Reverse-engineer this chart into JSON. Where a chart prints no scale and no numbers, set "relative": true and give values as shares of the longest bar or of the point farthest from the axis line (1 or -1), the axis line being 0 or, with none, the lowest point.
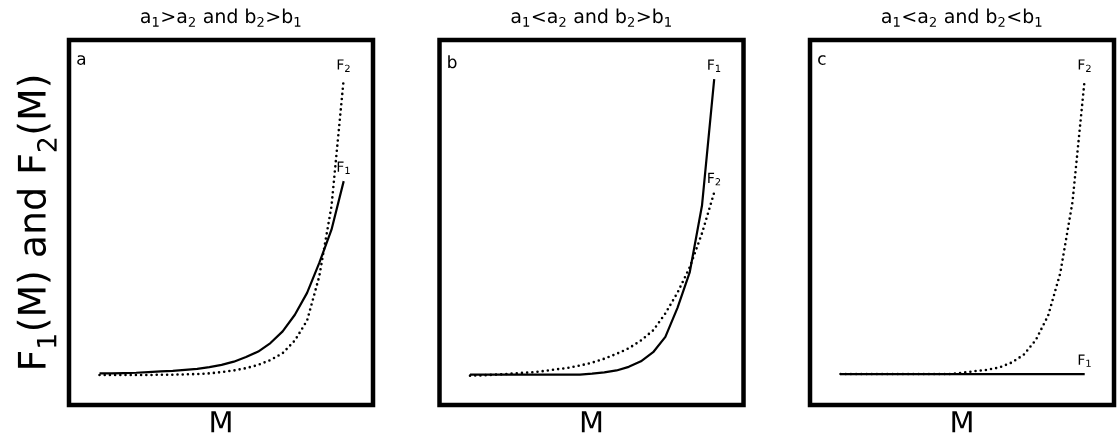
{
  "chart_data": [
    {
      "type": "line",
      "title": "a$_{1}$>a$_{2}$ and b$_{2}$>b$_{1}$",
      "xlabel": "M",
      "ylabel": "F$_{1}$(M) and F$_{2}$(M)",
      "relative": true,
      "annotations": [
        "a"
      ],
      "categories": [
        null,
        null,
        null,
        null,
        null,
        null,
        null,
        null,
        null,
        null,
        null,
        null,
        null,
        null,
        null,
        null,
        null,
        null,
        null,
        null,
        null
      ],
      "series": [
        {
          "name": "F$_{1}$",
          "color": "#000000",
          "line_style": "solid",
          "values": [
            0.097,
            0.097,
            0.098,
            0.099,
            0.101,
            0.103,
            0.105,
            0.108,
            0.111,
            0.116,
            0.123,
            0.133,
            0.147,
            0.164,
            0.19,
            0.226,
            0.277,
            0.344,
            0.436,
            0.538,
            0.687
          ]
        },
        {
          "name": "F$_{2}$",
          "color": "#000000",
          "line_style": "dotted",
          "values": [
            0.092,
            0.092,
            0.092,
            0.092,
            0.092,
            0.093,
            0.093,
            0.094,
            0.095,
            0.097,
            0.101,
            0.106,
            0.113,
            0.123,
            0.138,
            0.159,
            0.198,
            0.259,
            0.395,
            0.61,
            1
          ]
        }
      ]
    },
    {
      "type": "line",
      "title": "a$_{1}$<a$_{2}$ and b$_{2}$>b$_{1}$",
      "xlabel": "M",
      "relative": true,
      "annotations": [
        "b"
      ],
      "categories": [
        null,
        null,
        null,
        null,
        null,
        null,
        null,
        null,
        null,
        null,
        null,
        null,
        null,
        null,
        null,
        null,
        null,
        null,
        null,
        null,
        null
      ],
      "series": [
        {
          "name": "F$_{1}$",
          "color": "#000000",
          "line_style": "solid",
          "values": [
            0.093,
            0.093,
            0.093,
            0.093,
            0.093,
            0.093,
            0.093,
            0.093,
            0.093,
            0.093,
            0.096,
            0.1,
            0.106,
            0.117,
            0.134,
            0.162,
            0.209,
            0.299,
            0.408,
            0.612,
            1
          ]
        },
        {
          "name": "F$_{2}$",
          "color": "#000000",
          "line_style": "dotted",
          "values": [
            0.09,
            0.091,
            0.093,
            0.095,
            0.098,
            0.1,
            0.104,
            0.109,
            0.114,
            0.121,
            0.13,
            0.142,
            0.157,
            0.174,
            0.198,
            0.229,
            0.281,
            0.345,
            0.423,
            0.527,
            0.652
          ]
        }
      ]
    },
    {
      "type": "line",
      "title": "a$_{1}$<a$_{2}$ and b$_{2}$<b$_{1}$",
      "xlabel": "M",
      "relative": true,
      "annotations": [
        "c"
      ],
      "categories": [
        null,
        null,
        null,
        null,
        null,
        null,
        null,
        null,
        null,
        null,
        null,
        null,
        null,
        null,
        null,
        null,
        null,
        null,
        null,
        null,
        null
      ],
      "series": [
        {
          "name": "F$_{1}$",
          "color": "#000000",
          "line_style": "solid",
          "values": [
            0.095,
            0.095,
            0.095,
            0.095,
            0.095,
            0.095,
            0.095,
            0.095,
            0.095,
            0.095,
            0.095,
            0.095,
            0.095,
            0.095,
            0.095,
            0.095,
            0.095,
            0.095,
            0.095,
            0.095,
            0.095
          ]
        },
        {
          "name": "F$_{2}$",
          "color": "#000000",
          "line_style": "dotted",
          "values": [
            0.095,
            0.095,
            0.095,
            0.095,
            0.095,
            0.095,
            0.095,
            0.095,
            0.095,
            0.095,
            0.099,
            0.104,
            0.108,
            0.115,
            0.13,
            0.154,
            0.2,
            0.274,
            0.405,
            0.623,
            1
          ]
        }
      ]
    }
  ]
}
